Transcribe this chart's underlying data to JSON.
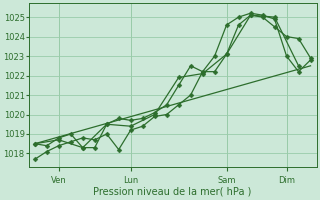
{
  "xlabel": "Pression niveau de la mer( hPa )",
  "bg_color": "#cce8d8",
  "grid_color": "#99ccaa",
  "line_color": "#2d6e2d",
  "ylim": [
    1017.3,
    1025.7
  ],
  "yticks": [
    1018,
    1019,
    1020,
    1021,
    1022,
    1023,
    1024,
    1025
  ],
  "num_days": 4,
  "day_labels": [
    "Ven",
    "Lun",
    "Sam",
    "Dim"
  ],
  "line1_x": [
    0,
    1,
    2,
    3,
    4,
    5,
    6,
    7,
    8,
    9,
    10,
    11,
    12,
    13,
    14,
    15,
    16,
    17,
    18,
    19,
    20,
    21,
    22,
    23
  ],
  "line1_y": [
    1017.7,
    1018.1,
    1018.4,
    1018.6,
    1018.8,
    1018.7,
    1019.0,
    1018.2,
    1019.2,
    1019.4,
    1019.9,
    1020.0,
    1020.5,
    1021.0,
    1022.2,
    1022.2,
    1023.1,
    1024.6,
    1025.1,
    1025.0,
    1024.5,
    1024.0,
    1023.9,
    1022.9
  ],
  "line2_x": [
    0,
    1,
    2,
    3,
    4,
    5,
    6,
    7,
    8,
    9,
    10,
    11,
    12,
    13,
    14,
    15,
    16,
    17,
    18,
    19,
    20,
    21,
    22,
    23
  ],
  "line2_y": [
    1018.5,
    1018.4,
    1018.8,
    1019.0,
    1018.3,
    1018.3,
    1019.5,
    1019.8,
    1019.7,
    1019.8,
    1020.1,
    1020.5,
    1021.5,
    1022.5,
    1022.2,
    1023.0,
    1024.6,
    1025.0,
    1025.2,
    1025.1,
    1024.9,
    1023.0,
    1022.2,
    1022.8
  ],
  "line3_x": [
    0,
    2,
    4,
    6,
    8,
    10,
    12,
    14,
    16,
    18,
    20,
    22
  ],
  "line3_y": [
    1018.5,
    1018.7,
    1018.3,
    1019.5,
    1019.4,
    1020.0,
    1021.9,
    1022.1,
    1023.1,
    1025.1,
    1025.0,
    1022.5
  ],
  "trend_x": [
    0,
    23
  ],
  "trend_y": [
    1018.5,
    1022.5
  ],
  "xlim": [
    -0.5,
    23.5
  ],
  "xtick_positions": [
    2,
    8,
    16,
    21
  ],
  "ytick_fontsize": 6,
  "xtick_fontsize": 6,
  "xlabel_fontsize": 7
}
